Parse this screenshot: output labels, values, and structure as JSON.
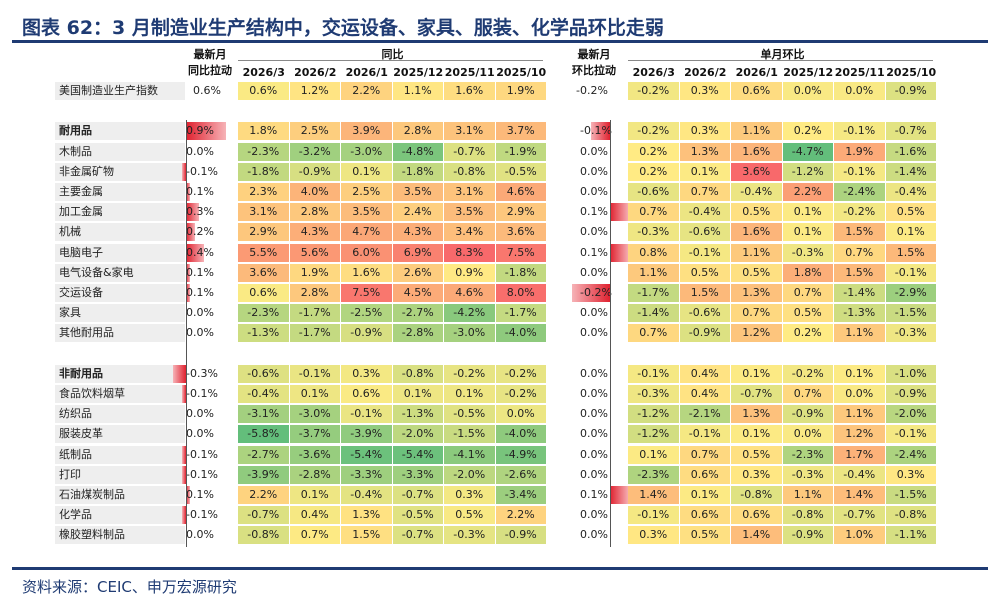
{
  "title": "图表 62：3 月制造业生产结构中，交运设备、家具、服装、化学品环比走弱",
  "source": "资料来源：CEIC、申万宏源研究",
  "colors": {
    "accent": "#1f3b73",
    "bar": "#e0212f"
  },
  "chart_data": {
    "type": "table",
    "header_groups": {
      "yoy": "同比",
      "mom": "单月环比"
    },
    "header_bar_yoy": [
      "最新月",
      "同比拉动"
    ],
    "header_bar_mom": [
      "最新月",
      "环比拉动"
    ],
    "periods": [
      "2026/3",
      "2026/2",
      "2026/1",
      "2025/12",
      "2025/11",
      "2025/10"
    ],
    "rows": [
      {
        "label": "美国制造业生产指数",
        "bold": false,
        "header": true,
        "yoy_contrib": "0.6%",
        "yoy": [
          "0.6%",
          "1.2%",
          "2.2%",
          "1.1%",
          "1.6%",
          "1.9%"
        ],
        "mom_contrib": "-0.2%",
        "mom": [
          "-0.2%",
          "0.3%",
          "0.6%",
          "0.0%",
          "0.0%",
          "-0.9%"
        ]
      },
      null,
      {
        "label": "耐用品",
        "bold": true,
        "yoy_contrib": "0.9%",
        "yoy": [
          "1.8%",
          "2.5%",
          "3.9%",
          "2.8%",
          "3.1%",
          "3.7%"
        ],
        "mom_contrib": "-0.1%",
        "mom": [
          "-0.2%",
          "0.3%",
          "1.1%",
          "0.2%",
          "-0.1%",
          "-0.7%"
        ]
      },
      {
        "label": "木制品",
        "yoy_contrib": "0.0%",
        "yoy": [
          "-2.3%",
          "-3.2%",
          "-3.0%",
          "-4.8%",
          "-0.7%",
          "-1.9%"
        ],
        "mom_contrib": "0.0%",
        "mom": [
          "0.2%",
          "1.3%",
          "1.6%",
          "-4.7%",
          "1.9%",
          "-1.6%"
        ]
      },
      {
        "label": "非金属矿物",
        "yoy_contrib": "-0.1%",
        "yoy": [
          "-1.8%",
          "-0.9%",
          "0.1%",
          "-1.8%",
          "-0.8%",
          "-0.5%"
        ],
        "mom_contrib": "0.0%",
        "mom": [
          "0.2%",
          "0.1%",
          "3.6%",
          "-1.2%",
          "-0.1%",
          "-1.4%"
        ]
      },
      {
        "label": "主要金属",
        "yoy_contrib": "0.1%",
        "yoy": [
          "2.3%",
          "4.0%",
          "2.5%",
          "3.5%",
          "3.1%",
          "4.6%"
        ],
        "mom_contrib": "0.0%",
        "mom": [
          "-0.6%",
          "0.7%",
          "-0.4%",
          "2.2%",
          "-2.4%",
          "-0.4%"
        ]
      },
      {
        "label": "加工金属",
        "yoy_contrib": "0.3%",
        "yoy": [
          "3.1%",
          "2.8%",
          "3.5%",
          "2.4%",
          "3.5%",
          "2.9%"
        ],
        "mom_contrib": "0.1%",
        "mom": [
          "0.7%",
          "-0.4%",
          "0.5%",
          "0.1%",
          "-0.2%",
          "0.5%"
        ]
      },
      {
        "label": "机械",
        "yoy_contrib": "0.2%",
        "yoy": [
          "2.9%",
          "4.3%",
          "4.7%",
          "4.3%",
          "3.4%",
          "3.6%"
        ],
        "mom_contrib": "0.0%",
        "mom": [
          "-0.3%",
          "-0.6%",
          "1.6%",
          "0.1%",
          "1.5%",
          "0.1%"
        ]
      },
      {
        "label": "电脑电子",
        "yoy_contrib": "0.4%",
        "yoy": [
          "5.5%",
          "5.6%",
          "6.0%",
          "6.9%",
          "8.3%",
          "7.5%"
        ],
        "mom_contrib": "0.1%",
        "mom": [
          "0.8%",
          "-0.1%",
          "1.1%",
          "-0.3%",
          "0.7%",
          "1.5%"
        ]
      },
      {
        "label": "电气设备&家电",
        "yoy_contrib": "0.1%",
        "yoy": [
          "3.6%",
          "1.9%",
          "1.6%",
          "2.6%",
          "0.9%",
          "-1.8%"
        ],
        "mom_contrib": "0.0%",
        "mom": [
          "1.1%",
          "0.5%",
          "0.5%",
          "1.8%",
          "1.5%",
          "-0.1%"
        ]
      },
      {
        "label": "交运设备",
        "yoy_contrib": "0.1%",
        "yoy": [
          "0.6%",
          "2.8%",
          "7.5%",
          "4.5%",
          "4.6%",
          "8.0%"
        ],
        "mom_contrib": "-0.2%",
        "mom": [
          "-1.7%",
          "1.5%",
          "1.3%",
          "0.7%",
          "-1.4%",
          "-2.9%"
        ]
      },
      {
        "label": "家具",
        "yoy_contrib": "0.0%",
        "yoy": [
          "-2.3%",
          "-1.7%",
          "-2.5%",
          "-2.7%",
          "-4.2%",
          "-1.7%"
        ],
        "mom_contrib": "0.0%",
        "mom": [
          "-1.4%",
          "-0.6%",
          "0.7%",
          "0.5%",
          "-1.3%",
          "-1.5%"
        ]
      },
      {
        "label": "其他耐用品",
        "yoy_contrib": "0.0%",
        "yoy": [
          "-1.3%",
          "-1.7%",
          "-0.9%",
          "-2.8%",
          "-3.0%",
          "-4.0%"
        ],
        "mom_contrib": "0.0%",
        "mom": [
          "0.7%",
          "-0.9%",
          "1.2%",
          "0.2%",
          "1.1%",
          "-0.3%"
        ]
      },
      null,
      {
        "label": "非耐用品",
        "bold": true,
        "yoy_contrib": "-0.3%",
        "yoy": [
          "-0.6%",
          "-0.1%",
          "0.3%",
          "-0.8%",
          "-0.2%",
          "-0.2%"
        ],
        "mom_contrib": "0.0%",
        "mom": [
          "-0.1%",
          "0.4%",
          "0.1%",
          "-0.2%",
          "0.1%",
          "-1.0%"
        ]
      },
      {
        "label": "食品饮料烟草",
        "yoy_contrib": "-0.1%",
        "yoy": [
          "-0.4%",
          "0.1%",
          "0.6%",
          "0.1%",
          "0.1%",
          "-0.2%"
        ],
        "mom_contrib": "0.0%",
        "mom": [
          "-0.3%",
          "0.4%",
          "-0.7%",
          "0.7%",
          "0.0%",
          "-0.9%"
        ]
      },
      {
        "label": "纺织品",
        "yoy_contrib": "0.0%",
        "yoy": [
          "-3.1%",
          "-3.0%",
          "-0.1%",
          "-1.3%",
          "-0.5%",
          "0.0%"
        ],
        "mom_contrib": "0.0%",
        "mom": [
          "-1.2%",
          "-2.1%",
          "1.3%",
          "-0.9%",
          "1.1%",
          "-2.0%"
        ]
      },
      {
        "label": "服装皮革",
        "yoy_contrib": "0.0%",
        "yoy": [
          "-5.8%",
          "-3.7%",
          "-3.9%",
          "-2.0%",
          "-1.5%",
          "-4.0%"
        ],
        "mom_contrib": "0.0%",
        "mom": [
          "-1.2%",
          "-0.1%",
          "0.1%",
          "0.0%",
          "1.2%",
          "-0.1%"
        ]
      },
      {
        "label": "纸制品",
        "yoy_contrib": "-0.1%",
        "yoy": [
          "-2.7%",
          "-3.6%",
          "-5.4%",
          "-5.4%",
          "-4.1%",
          "-4.9%"
        ],
        "mom_contrib": "0.0%",
        "mom": [
          "0.1%",
          "0.7%",
          "0.5%",
          "-2.3%",
          "1.7%",
          "-2.4%"
        ]
      },
      {
        "label": "打印",
        "yoy_contrib": "-0.1%",
        "yoy": [
          "-3.9%",
          "-2.8%",
          "-3.3%",
          "-3.3%",
          "-2.0%",
          "-2.6%"
        ],
        "mom_contrib": "0.0%",
        "mom": [
          "-2.3%",
          "0.6%",
          "0.3%",
          "-0.3%",
          "-0.4%",
          "0.3%"
        ]
      },
      {
        "label": "石油煤炭制品",
        "yoy_contrib": "0.1%",
        "yoy": [
          "2.2%",
          "0.1%",
          "-0.4%",
          "-0.7%",
          "0.3%",
          "-3.4%"
        ],
        "mom_contrib": "0.1%",
        "mom": [
          "1.4%",
          "0.1%",
          "-0.8%",
          "1.1%",
          "1.4%",
          "-1.5%"
        ]
      },
      {
        "label": "化学品",
        "yoy_contrib": "-0.1%",
        "yoy": [
          "-0.7%",
          "0.4%",
          "1.3%",
          "-0.5%",
          "0.5%",
          "2.2%"
        ],
        "mom_contrib": "0.0%",
        "mom": [
          "-0.1%",
          "0.6%",
          "0.6%",
          "-0.8%",
          "-0.7%",
          "-0.8%"
        ]
      },
      {
        "label": "橡胶塑料制品",
        "yoy_contrib": "0.0%",
        "yoy": [
          "-0.8%",
          "0.7%",
          "1.5%",
          "-0.7%",
          "-0.3%",
          "-0.9%"
        ],
        "mom_contrib": "0.0%",
        "mom": [
          "0.3%",
          "0.5%",
          "1.4%",
          "-0.9%",
          "1.0%",
          "-1.1%"
        ]
      }
    ]
  }
}
